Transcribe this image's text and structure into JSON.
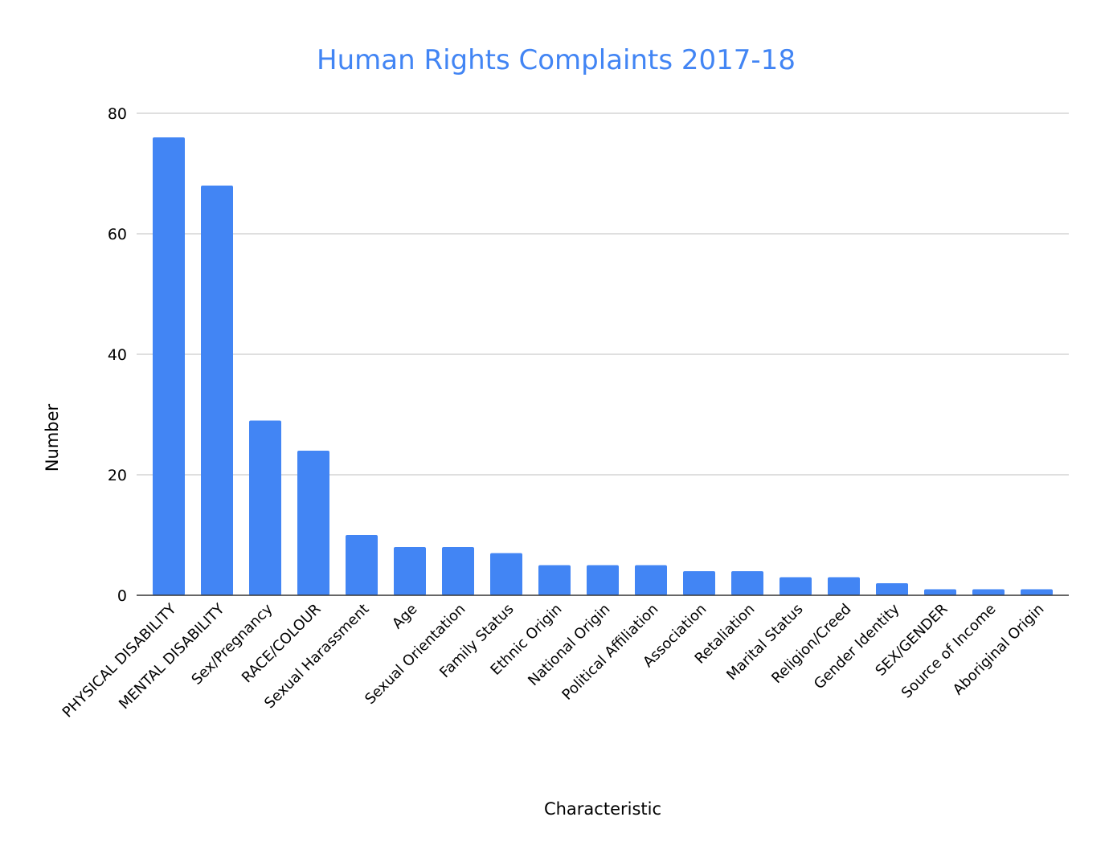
{
  "chart_data": {
    "type": "bar",
    "title": "Human Rights Complaints 2017-18",
    "xlabel": "Characteristic",
    "ylabel": "Number",
    "ylim": [
      0,
      80
    ],
    "yticks": [
      0,
      20,
      40,
      60,
      80
    ],
    "grid": true,
    "legend": "none",
    "bar_color": "#4285f4",
    "categories": [
      "PHYSICAL DISABILITY",
      "MENTAL DISABILITY",
      "Sex/Pregnancy",
      "RACE/COLOUR",
      "Sexual Harassment",
      "Age",
      "Sexual Orientation",
      "Family Status",
      "Ethnic Origin",
      "National Origin",
      "Political Affiliation",
      "Association",
      "Retaliation",
      "Marital Status",
      "Religion/Creed",
      "Gender Identity",
      "SEX/GENDER",
      "Source of Income",
      "Aboriginal Origin"
    ],
    "values": [
      76,
      68,
      29,
      24,
      10,
      8,
      8,
      7,
      5,
      5,
      5,
      4,
      4,
      3,
      3,
      2,
      1,
      1,
      1
    ]
  }
}
